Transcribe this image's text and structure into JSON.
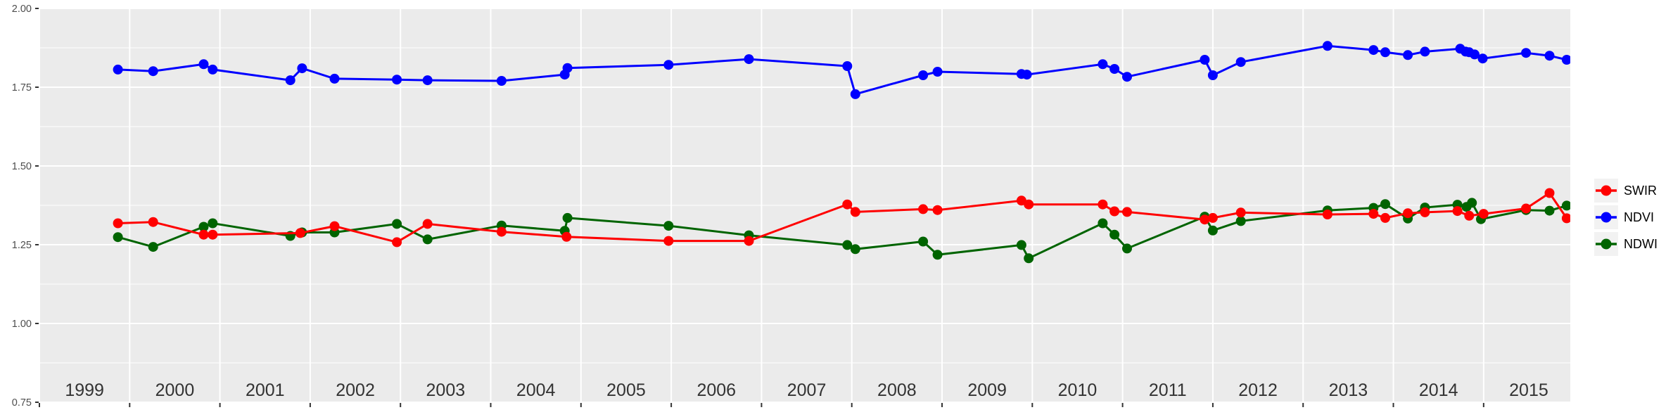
{
  "chart_data": {
    "type": "line",
    "title": "",
    "xlabel": "",
    "ylabel": "",
    "x_range": [
      1999.0,
      2015.96
    ],
    "y_range": [
      0.75,
      2.0
    ],
    "y_major_ticks": [
      0.75,
      1.0,
      1.25,
      1.5,
      1.75,
      2.0
    ],
    "y_tick_labels": [
      "0.75",
      "1.00",
      "1.25",
      "1.50",
      "1.75",
      "2.00"
    ],
    "y_minor_ticks": [
      0.875,
      1.125,
      1.375,
      1.625,
      1.875
    ],
    "x_tick_years": [
      1999,
      2000,
      2001,
      2002,
      2003,
      2004,
      2005,
      2006,
      2007,
      2008,
      2009,
      2010,
      2011,
      2012,
      2013,
      2014,
      2015
    ],
    "x_tick_labels": [
      "1999",
      "2000",
      "2001",
      "2002",
      "2003",
      "2004",
      "2005",
      "2006",
      "2007",
      "2008",
      "2009",
      "2010",
      "2011",
      "2012",
      "2013",
      "2014",
      "2015"
    ],
    "grid": {
      "panel_background": "#EBEBEB",
      "major_color": "#FFFFFF",
      "minor_color": "#FFFFFF",
      "grid_on": true
    },
    "axis_text_color_y": "#4d4d4d",
    "axis_text_color_x": "#333333",
    "tick_mark_color": "#333333",
    "legend_position": "right",
    "legend_key_fill": "#f2f2f2",
    "series": [
      {
        "name": "SWIR",
        "color": "#ff0000",
        "x": [
          1999.87,
          2000.26,
          2000.82,
          2000.92,
          2001.89,
          2002.27,
          2002.96,
          2003.3,
          2004.12,
          2004.84,
          2005.97,
          2006.86,
          2007.95,
          2008.04,
          2008.79,
          2008.95,
          2009.88,
          2009.96,
          2010.78,
          2010.91,
          2011.05,
          2011.91,
          2012.0,
          2012.31,
          2013.27,
          2013.78,
          2013.91,
          2014.16,
          2014.35,
          2014.71,
          2014.84,
          2015.0,
          2015.47,
          2015.73,
          2015.92
        ],
        "values": [
          1.318,
          1.322,
          1.282,
          1.282,
          1.287,
          1.309,
          1.258,
          1.316,
          1.291,
          1.275,
          1.262,
          1.262,
          1.378,
          1.354,
          1.363,
          1.36,
          1.39,
          1.378,
          1.378,
          1.356,
          1.354,
          1.33,
          1.335,
          1.352,
          1.346,
          1.348,
          1.335,
          1.35,
          1.353,
          1.357,
          1.342,
          1.348,
          1.365,
          1.414,
          1.334
        ]
      },
      {
        "name": "NDVI",
        "color": "#0000ff",
        "x": [
          1999.87,
          2000.26,
          2000.82,
          2000.92,
          2001.78,
          2001.91,
          2002.27,
          2002.96,
          2003.3,
          2004.12,
          2004.82,
          2004.85,
          2005.97,
          2006.86,
          2007.95,
          2008.04,
          2008.79,
          2008.95,
          2009.88,
          2009.94,
          2010.78,
          2010.91,
          2011.05,
          2011.91,
          2012.0,
          2012.31,
          2013.27,
          2013.78,
          2013.91,
          2014.16,
          2014.35,
          2014.74,
          2014.8,
          2014.84,
          2014.9,
          2014.99,
          2015.47,
          2015.73,
          2015.92
        ],
        "values": [
          1.806,
          1.801,
          1.823,
          1.806,
          1.772,
          1.81,
          1.777,
          1.774,
          1.772,
          1.77,
          1.79,
          1.811,
          1.821,
          1.839,
          1.817,
          1.728,
          1.788,
          1.799,
          1.792,
          1.79,
          1.823,
          1.808,
          1.783,
          1.837,
          1.788,
          1.83,
          1.881,
          1.868,
          1.861,
          1.852,
          1.863,
          1.872,
          1.863,
          1.861,
          1.854,
          1.841,
          1.859,
          1.85,
          1.837
        ]
      },
      {
        "name": "NDWI",
        "color": "#006400",
        "x": [
          1999.87,
          2000.26,
          2000.82,
          2000.92,
          2001.78,
          2001.91,
          2002.27,
          2002.96,
          2003.3,
          2004.12,
          2004.82,
          2004.85,
          2005.97,
          2006.86,
          2007.95,
          2008.04,
          2008.79,
          2008.95,
          2009.88,
          2009.96,
          2010.78,
          2010.91,
          2011.05,
          2011.91,
          2012.0,
          2012.31,
          2013.27,
          2013.78,
          2013.91,
          2014.16,
          2014.35,
          2014.71,
          2014.81,
          2014.87,
          2014.97,
          2015.47,
          2015.73,
          2015.92
        ],
        "values": [
          1.274,
          1.243,
          1.307,
          1.318,
          1.278,
          1.289,
          1.289,
          1.316,
          1.267,
          1.311,
          1.294,
          1.335,
          1.31,
          1.28,
          1.249,
          1.236,
          1.26,
          1.218,
          1.249,
          1.207,
          1.318,
          1.282,
          1.238,
          1.339,
          1.295,
          1.325,
          1.359,
          1.367,
          1.379,
          1.333,
          1.368,
          1.377,
          1.37,
          1.383,
          1.331,
          1.36,
          1.358,
          1.374
        ]
      }
    ]
  }
}
